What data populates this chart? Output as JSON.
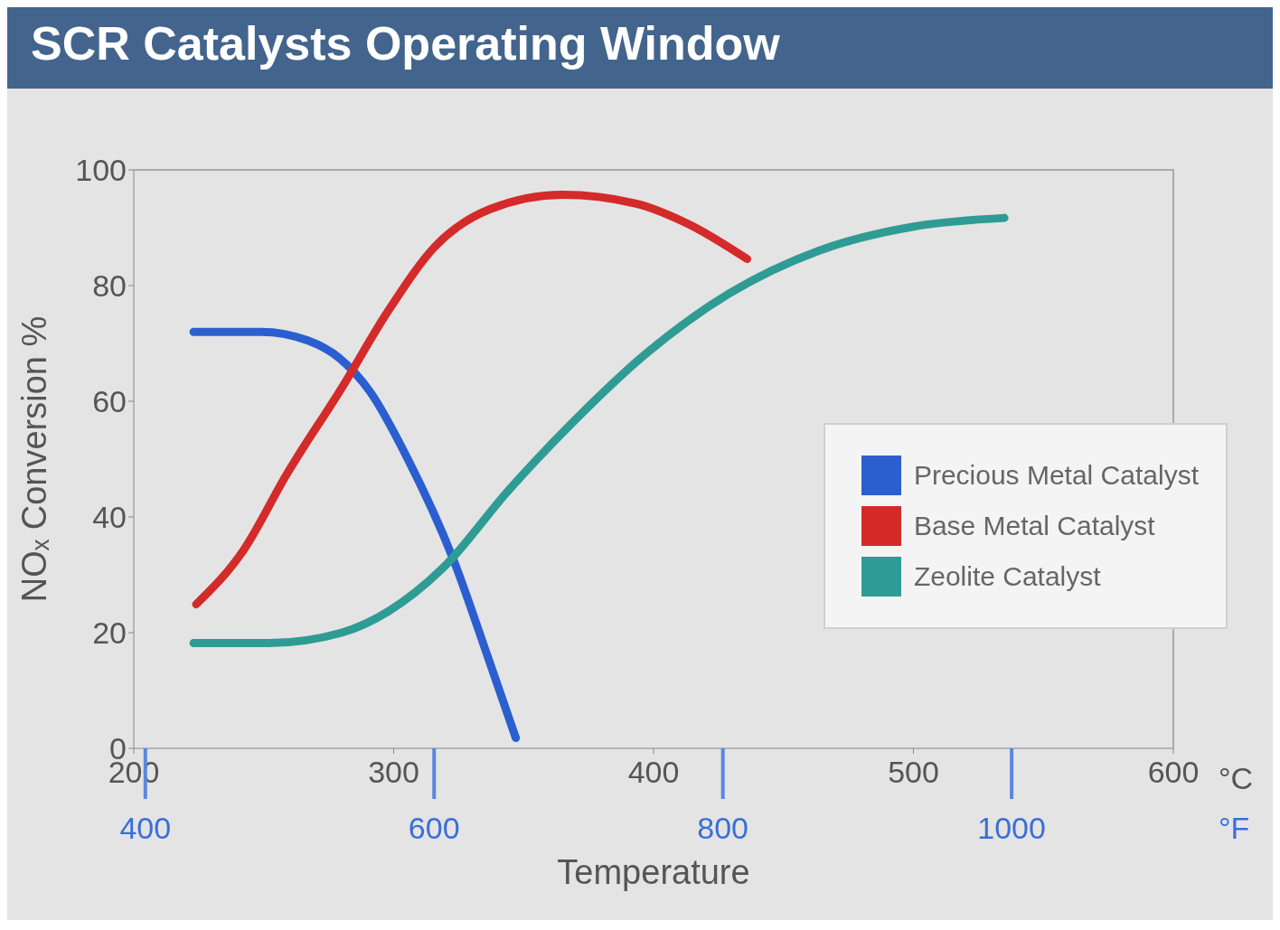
{
  "chart_data": {
    "type": "line",
    "title": "SCR Catalysts Operating Window",
    "xlabel": "Temperature",
    "ylabel": "NOₓ Conversion %",
    "x2label": "°F",
    "annotations": [
      "°C"
    ],
    "xlim": [
      200,
      600
    ],
    "xticks": [
      200,
      300,
      400,
      500,
      600
    ],
    "x2lim": [
      392,
      1112
    ],
    "x2ticks": [
      400,
      600,
      800,
      1000
    ],
    "ylim": [
      0,
      100
    ],
    "yticks": [
      0,
      20,
      40,
      60,
      80,
      100
    ],
    "grid": false,
    "legend": "right",
    "marker": "none",
    "line_style": "solid",
    "series": [
      {
        "name": "Precious Metal Catalyst",
        "color": "#2b5fd0",
        "x": [
          223,
          249,
          267,
          279,
          291,
          305,
          323,
          337,
          347
        ],
        "values": [
          72,
          72,
          70.5,
          67.5,
          61.6,
          50.4,
          32.6,
          14.8,
          1.8
        ]
      },
      {
        "name": "Base Metal Catalyst",
        "color": "#d42a2a",
        "x": [
          224,
          242,
          259,
          280,
          298,
          316,
          337,
          365,
          393,
          414,
          436
        ],
        "values": [
          24.9,
          34.1,
          47.5,
          62.3,
          75.7,
          86.8,
          93.2,
          95.7,
          94.2,
          90.5,
          84.6
        ]
      },
      {
        "name": "Zeolite Catalyst",
        "color": "#2e9c94",
        "x": [
          223,
          252,
          280,
          298,
          319,
          344,
          369,
          397,
          429,
          464,
          500,
          535
        ],
        "values": [
          18.2,
          18.2,
          20,
          23.7,
          31.2,
          44.5,
          56.4,
          68.2,
          78.6,
          86.1,
          90.2,
          91.7
        ]
      }
    ]
  }
}
